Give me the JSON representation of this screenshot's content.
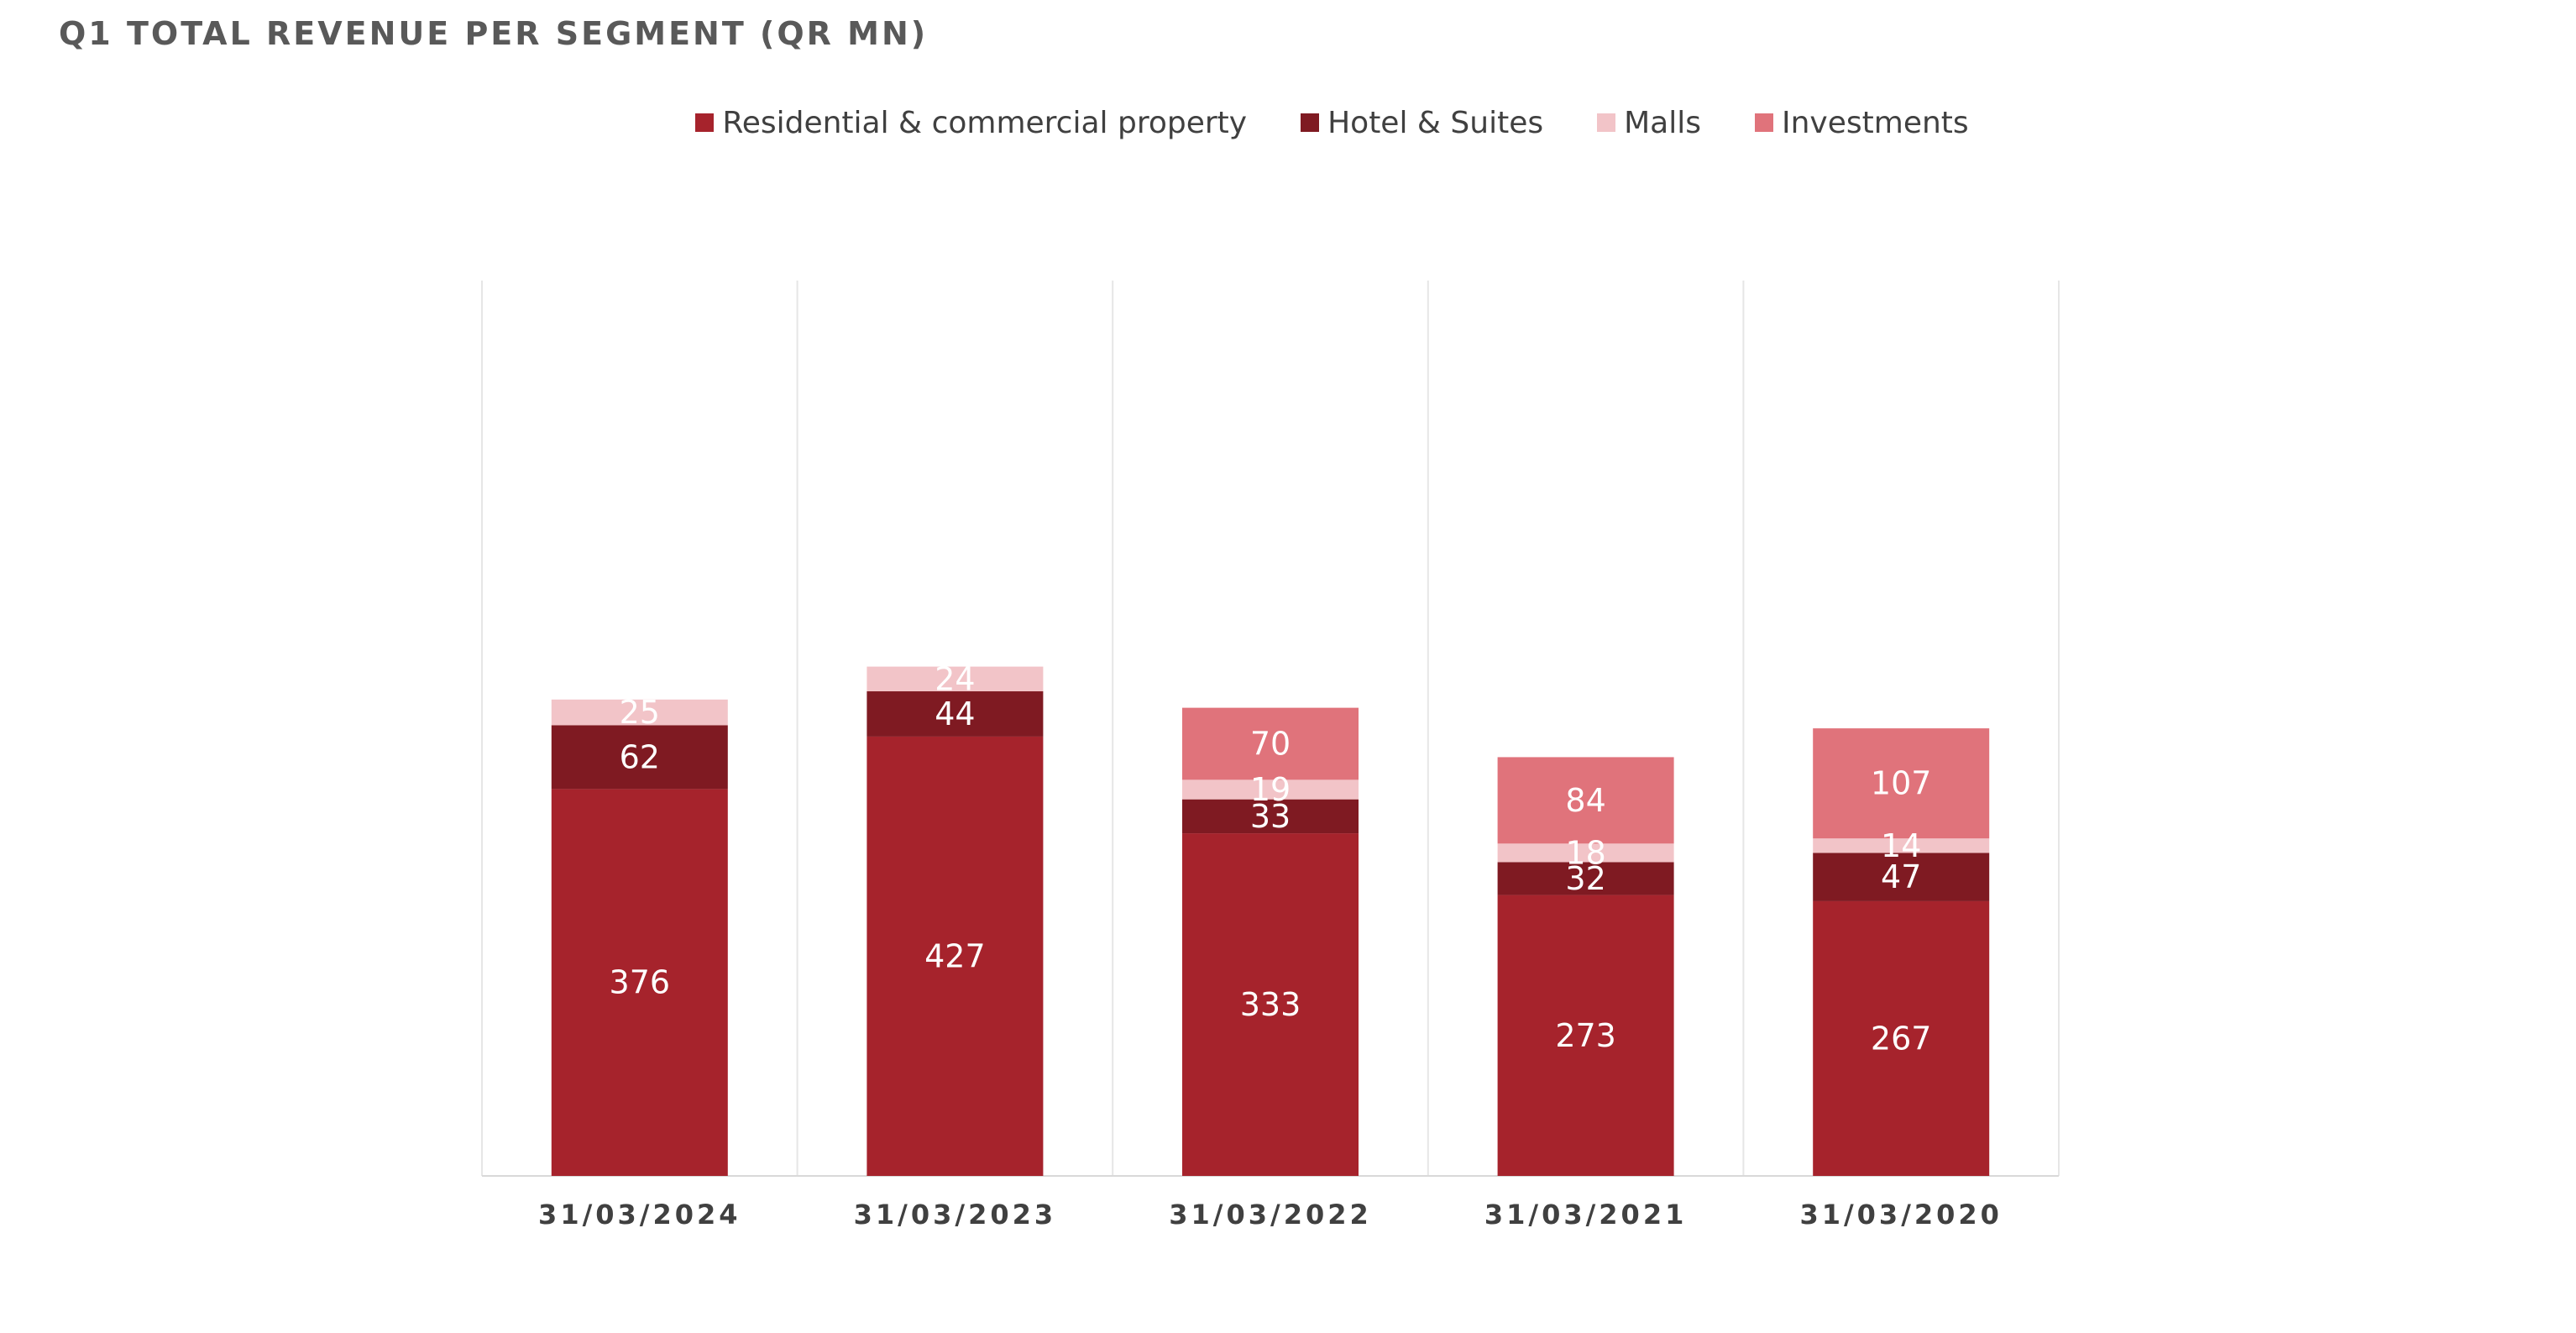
{
  "chart_data": {
    "type": "bar",
    "stacked": true,
    "title": "Q1 TOTAL REVENUE PER SEGMENT (QR MN)",
    "categories": [
      "31/03/2024",
      "31/03/2023",
      "31/03/2022",
      "31/03/2021",
      "31/03/2020"
    ],
    "series": [
      {
        "name": "Residential & commercial property",
        "color": "#A6232C",
        "values": [
          376,
          427,
          333,
          273,
          267
        ]
      },
      {
        "name": "Hotel & Suites",
        "color": "#7F1A22",
        "values": [
          62,
          44,
          33,
          32,
          47
        ]
      },
      {
        "name": "Malls",
        "color": "#F2C4C8",
        "values": [
          25,
          24,
          19,
          18,
          14
        ]
      },
      {
        "name": "Investments",
        "color": "#E0737B",
        "values": [
          null,
          null,
          70,
          84,
          107
        ]
      }
    ],
    "legend_position": "top",
    "grid": false,
    "value_labels": true
  }
}
